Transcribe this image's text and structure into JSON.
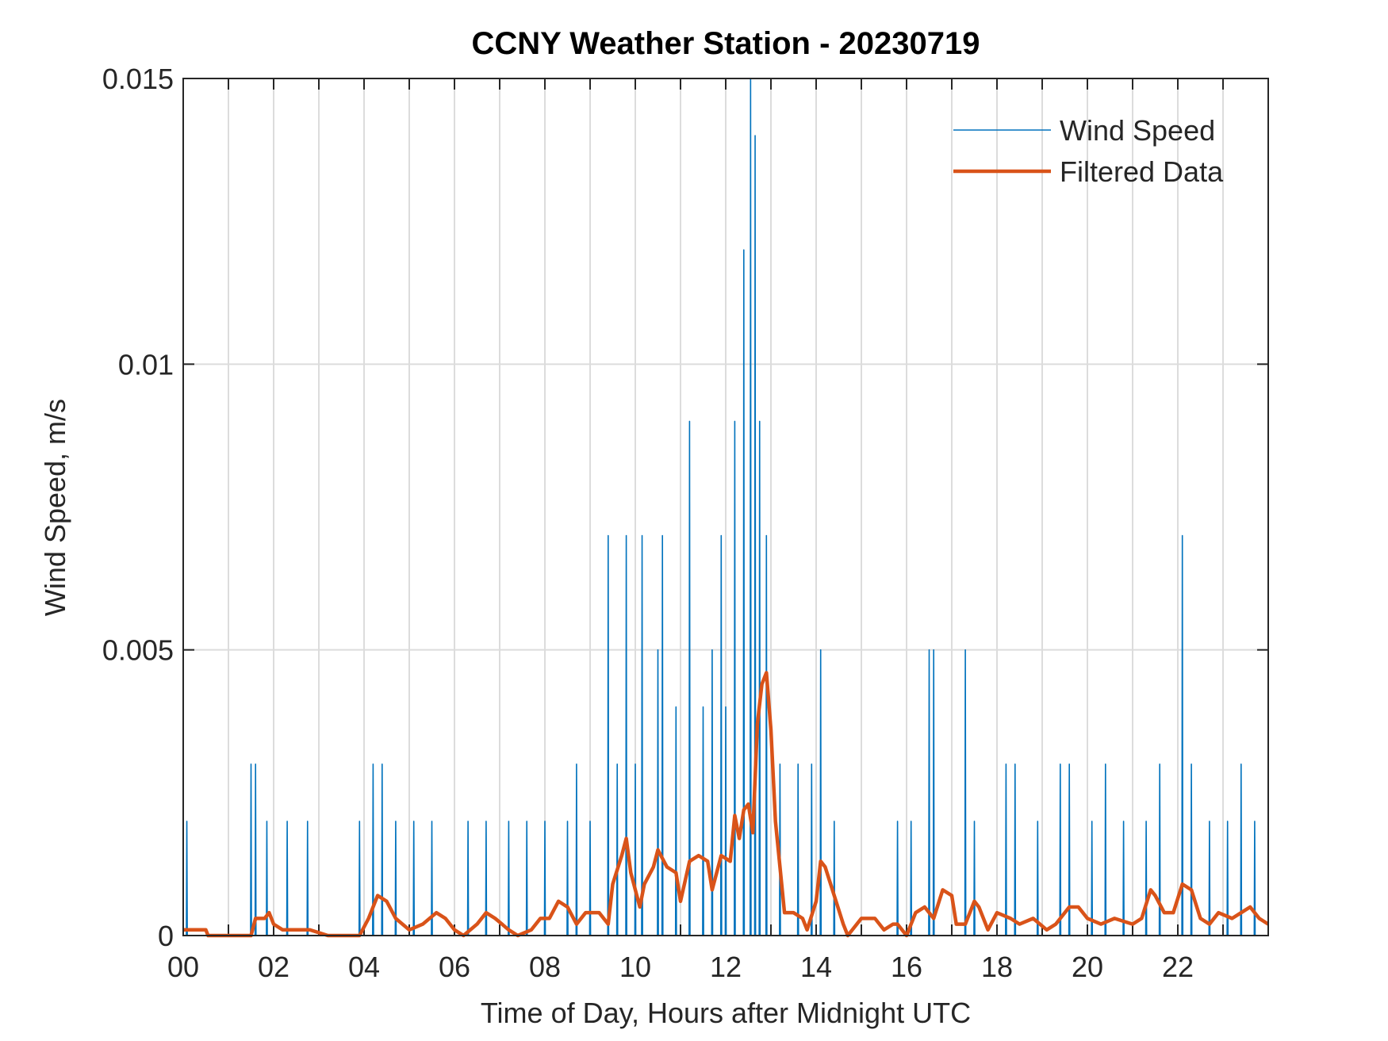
{
  "chart_data": {
    "type": "line",
    "title": "CCNY Weather Station - 20230719",
    "xlabel": "Time of Day, Hours after Midnight UTC",
    "ylabel": "Wind Speed, m/s",
    "xlim": [
      0,
      24
    ],
    "ylim": [
      0,
      0.015
    ],
    "xticks": [
      {
        "value": 0,
        "label": "00"
      },
      {
        "value": 2,
        "label": "02"
      },
      {
        "value": 4,
        "label": "04"
      },
      {
        "value": 6,
        "label": "06"
      },
      {
        "value": 8,
        "label": "08"
      },
      {
        "value": 10,
        "label": "10"
      },
      {
        "value": 12,
        "label": "12"
      },
      {
        "value": 14,
        "label": "14"
      },
      {
        "value": 16,
        "label": "16"
      },
      {
        "value": 18,
        "label": "18"
      },
      {
        "value": 20,
        "label": "20"
      },
      {
        "value": 22,
        "label": "22"
      }
    ],
    "xminorticks": [
      1,
      3,
      5,
      7,
      9,
      11,
      13,
      15,
      17,
      19,
      21,
      23
    ],
    "yticks": [
      0,
      0.005,
      0.01,
      0.015
    ],
    "grid": true,
    "legend": "northeast",
    "series": [
      {
        "name": "Wind Speed",
        "color": "#0072bd",
        "x": [
          0,
          0.07,
          0.08,
          0.09,
          1.49,
          1.5,
          1.51,
          1.59,
          1.6,
          1.61,
          1.84,
          1.85,
          1.86,
          2.29,
          2.3,
          2.31,
          2.74,
          2.75,
          2.76,
          3.89,
          3.9,
          3.91,
          4.19,
          4.2,
          4.21,
          4.39,
          4.4,
          4.41,
          4.69,
          4.7,
          4.71,
          5.09,
          5.1,
          5.11,
          5.49,
          5.5,
          5.51,
          6.29,
          6.3,
          6.31,
          6.69,
          6.7,
          6.71,
          7.19,
          7.2,
          7.21,
          7.59,
          7.6,
          7.61,
          7.99,
          8.0,
          8.01,
          8.49,
          8.5,
          8.51,
          8.69,
          8.7,
          8.71,
          8.99,
          9.0,
          9.01,
          9.39,
          9.4,
          9.41,
          9.59,
          9.6,
          9.61,
          9.79,
          9.8,
          9.81,
          9.99,
          10.0,
          10.01,
          10.14,
          10.15,
          10.16,
          10.49,
          10.5,
          10.51,
          10.59,
          10.6,
          10.61,
          10.89,
          10.9,
          10.91,
          11.19,
          11.2,
          11.21,
          11.49,
          11.5,
          11.51,
          11.69,
          11.7,
          11.71,
          11.89,
          11.9,
          11.91,
          11.99,
          12.0,
          12.01,
          12.19,
          12.2,
          12.21,
          12.39,
          12.4,
          12.41,
          12.54,
          12.55,
          12.56,
          12.64,
          12.65,
          12.66,
          12.74,
          12.75,
          12.76,
          12.89,
          12.9,
          12.91,
          13.19,
          13.2,
          13.21,
          13.59,
          13.6,
          13.61,
          13.89,
          13.9,
          13.91,
          14.09,
          14.1,
          14.11,
          14.39,
          14.4,
          14.41,
          15.79,
          15.8,
          15.81,
          16.09,
          16.1,
          16.11,
          16.49,
          16.5,
          16.51,
          16.59,
          16.6,
          16.61,
          17.29,
          17.3,
          17.31,
          17.49,
          17.5,
          17.51,
          18.19,
          18.2,
          18.21,
          18.39,
          18.4,
          18.41,
          18.89,
          18.9,
          18.91,
          19.39,
          19.4,
          19.41,
          19.59,
          19.6,
          19.61,
          20.09,
          20.1,
          20.11,
          20.39,
          20.4,
          20.41,
          20.79,
          20.8,
          20.81,
          21.29,
          21.3,
          21.31,
          21.59,
          21.6,
          21.61,
          22.09,
          22.1,
          22.11,
          22.29,
          22.3,
          22.31,
          22.69,
          22.7,
          22.71,
          23.09,
          23.1,
          23.11,
          23.39,
          23.4,
          23.41,
          23.69,
          23.7,
          23.71,
          24
        ],
        "values": [
          0,
          0,
          0.002,
          0,
          0,
          0.003,
          0,
          0,
          0.003,
          0,
          0,
          0.002,
          0,
          0,
          0.002,
          0,
          0,
          0.002,
          0,
          0,
          0.002,
          0,
          0,
          0.003,
          0,
          0,
          0.003,
          0,
          0,
          0.002,
          0,
          0,
          0.002,
          0,
          0,
          0.002,
          0,
          0,
          0.002,
          0,
          0,
          0.002,
          0,
          0,
          0.002,
          0,
          0,
          0.002,
          0,
          0,
          0.002,
          0,
          0,
          0.002,
          0,
          0,
          0.003,
          0,
          0,
          0.002,
          0,
          0,
          0.007,
          0,
          0,
          0.003,
          0,
          0,
          0.007,
          0,
          0,
          0.003,
          0,
          0,
          0.007,
          0,
          0,
          0.005,
          0,
          0,
          0.007,
          0,
          0,
          0.004,
          0,
          0,
          0.009,
          0,
          0,
          0.004,
          0,
          0,
          0.005,
          0,
          0,
          0.007,
          0,
          0,
          0.004,
          0,
          0,
          0.009,
          0,
          0,
          0.012,
          0,
          0,
          0.015,
          0,
          0,
          0.014,
          0,
          0,
          0.009,
          0,
          0,
          0.007,
          0,
          0,
          0.003,
          0,
          0,
          0.003,
          0,
          0,
          0.003,
          0,
          0,
          0.005,
          0,
          0,
          0.002,
          0,
          0,
          0.002,
          0,
          0,
          0.002,
          0,
          0,
          0.005,
          0,
          0,
          0.005,
          0,
          0,
          0.005,
          0,
          0,
          0.002,
          0,
          0,
          0.003,
          0,
          0,
          0.003,
          0,
          0,
          0.002,
          0,
          0,
          0.003,
          0,
          0,
          0.003,
          0,
          0,
          0.002,
          0,
          0,
          0.003,
          0,
          0,
          0.002,
          0,
          0,
          0.002,
          0,
          0,
          0.003,
          0,
          0,
          0.007,
          0,
          0,
          0.003,
          0,
          0,
          0.002,
          0,
          0,
          0.002,
          0,
          0,
          0.003,
          0,
          0,
          0.002,
          0,
          0
        ]
      },
      {
        "name": "Filtered Data",
        "color": "#d95319",
        "x": [
          0,
          0.5,
          0.55,
          1.5,
          1.6,
          1.8,
          1.9,
          2.0,
          2.2,
          2.8,
          3.2,
          3.9,
          4.1,
          4.3,
          4.5,
          4.7,
          5.0,
          5.3,
          5.6,
          5.8,
          6.0,
          6.2,
          6.5,
          6.7,
          6.9,
          7.2,
          7.4,
          7.7,
          7.9,
          8.1,
          8.3,
          8.5,
          8.7,
          8.9,
          9.2,
          9.4,
          9.5,
          9.7,
          9.8,
          9.9,
          10.1,
          10.2,
          10.4,
          10.5,
          10.7,
          10.9,
          11.0,
          11.2,
          11.4,
          11.6,
          11.7,
          11.9,
          12.1,
          12.2,
          12.3,
          12.4,
          12.5,
          12.6,
          12.7,
          12.8,
          12.9,
          13.0,
          13.1,
          13.3,
          13.5,
          13.7,
          13.8,
          14.0,
          14.1,
          14.2,
          14.4,
          14.6,
          14.7,
          15.0,
          15.3,
          15.5,
          15.7,
          15.8,
          16.0,
          16.2,
          16.4,
          16.6,
          16.8,
          17.0,
          17.1,
          17.3,
          17.5,
          17.6,
          17.8,
          18.0,
          18.3,
          18.5,
          18.8,
          19.1,
          19.3,
          19.6,
          19.8,
          20.0,
          20.3,
          20.6,
          21.0,
          21.2,
          21.4,
          21.5,
          21.7,
          21.9,
          22.1,
          22.3,
          22.5,
          22.7,
          22.9,
          23.2,
          23.4,
          23.6,
          23.8,
          24.0
        ],
        "values": [
          0.0001,
          0.0001,
          0,
          0,
          0.0003,
          0.0003,
          0.0004,
          0.0002,
          0.0001,
          0.0001,
          0,
          0,
          0.0003,
          0.0007,
          0.0006,
          0.0003,
          0.0001,
          0.0002,
          0.0004,
          0.0003,
          0.0001,
          0,
          0.0002,
          0.0004,
          0.0003,
          0.0001,
          0,
          0.0001,
          0.0003,
          0.0003,
          0.0006,
          0.0005,
          0.0002,
          0.0004,
          0.0004,
          0.0002,
          0.0009,
          0.0014,
          0.0017,
          0.0011,
          0.0005,
          0.0009,
          0.0012,
          0.0015,
          0.0012,
          0.0011,
          0.0006,
          0.0013,
          0.0014,
          0.0013,
          0.0008,
          0.0014,
          0.0013,
          0.0021,
          0.0017,
          0.0022,
          0.0023,
          0.0018,
          0.0037,
          0.0044,
          0.0046,
          0.0036,
          0.002,
          0.0004,
          0.0004,
          0.0003,
          0.0001,
          0.0006,
          0.0013,
          0.0012,
          0.0007,
          0.0002,
          0,
          0.0003,
          0.0003,
          0.0001,
          0.0002,
          0.0002,
          0,
          0.0004,
          0.0005,
          0.0003,
          0.0008,
          0.0007,
          0.0002,
          0.0002,
          0.0006,
          0.0005,
          0.0001,
          0.0004,
          0.0003,
          0.0002,
          0.0003,
          0.0001,
          0.0002,
          0.0005,
          0.0005,
          0.0003,
          0.0002,
          0.0003,
          0.0002,
          0.0003,
          0.0008,
          0.0007,
          0.0004,
          0.0004,
          0.0009,
          0.0008,
          0.0003,
          0.0002,
          0.0004,
          0.0003,
          0.0004,
          0.0005,
          0.0003,
          0.0002
        ]
      }
    ]
  }
}
